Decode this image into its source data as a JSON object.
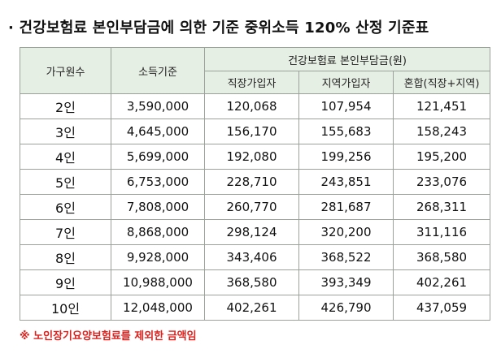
{
  "title": "· 건강보험료 본인부담금에 의한 기준 중위소득 120% 산정 기준표",
  "table": {
    "headers": {
      "household_size": "가구원수",
      "income_standard": "소득기준",
      "premium_group": "건강보험료 본인부담금(원)",
      "employee": "직장가입자",
      "regional": "지역가입자",
      "mixed": "혼합(직장+지역)"
    },
    "rows": [
      {
        "persons": "2인",
        "income": "3,590,000",
        "employee": "120,068",
        "regional": "107,954",
        "mixed": "121,451"
      },
      {
        "persons": "3인",
        "income": "4,645,000",
        "employee": "156,170",
        "regional": "155,683",
        "mixed": "158,243"
      },
      {
        "persons": "4인",
        "income": "5,699,000",
        "employee": "192,080",
        "regional": "199,256",
        "mixed": "195,200"
      },
      {
        "persons": "5인",
        "income": "6,753,000",
        "employee": "228,710",
        "regional": "243,851",
        "mixed": "233,076"
      },
      {
        "persons": "6인",
        "income": "7,808,000",
        "employee": "260,770",
        "regional": "281,687",
        "mixed": "268,311"
      },
      {
        "persons": "7인",
        "income": "8,868,000",
        "employee": "298,124",
        "regional": "320,200",
        "mixed": "311,116"
      },
      {
        "persons": "8인",
        "income": "9,928,000",
        "employee": "343,406",
        "regional": "368,522",
        "mixed": "368,580"
      },
      {
        "persons": "9인",
        "income": "10,988,000",
        "employee": "368,580",
        "regional": "393,349",
        "mixed": "402,261"
      },
      {
        "persons": "10인",
        "income": "12,048,000",
        "employee": "402,261",
        "regional": "426,790",
        "mixed": "437,059"
      }
    ]
  },
  "note": "※ 노인장기요양보험료를 제외한 금액임",
  "colors": {
    "header_bg": "#e6efe3",
    "border": "#9aa29a",
    "note": "#d9231f"
  }
}
